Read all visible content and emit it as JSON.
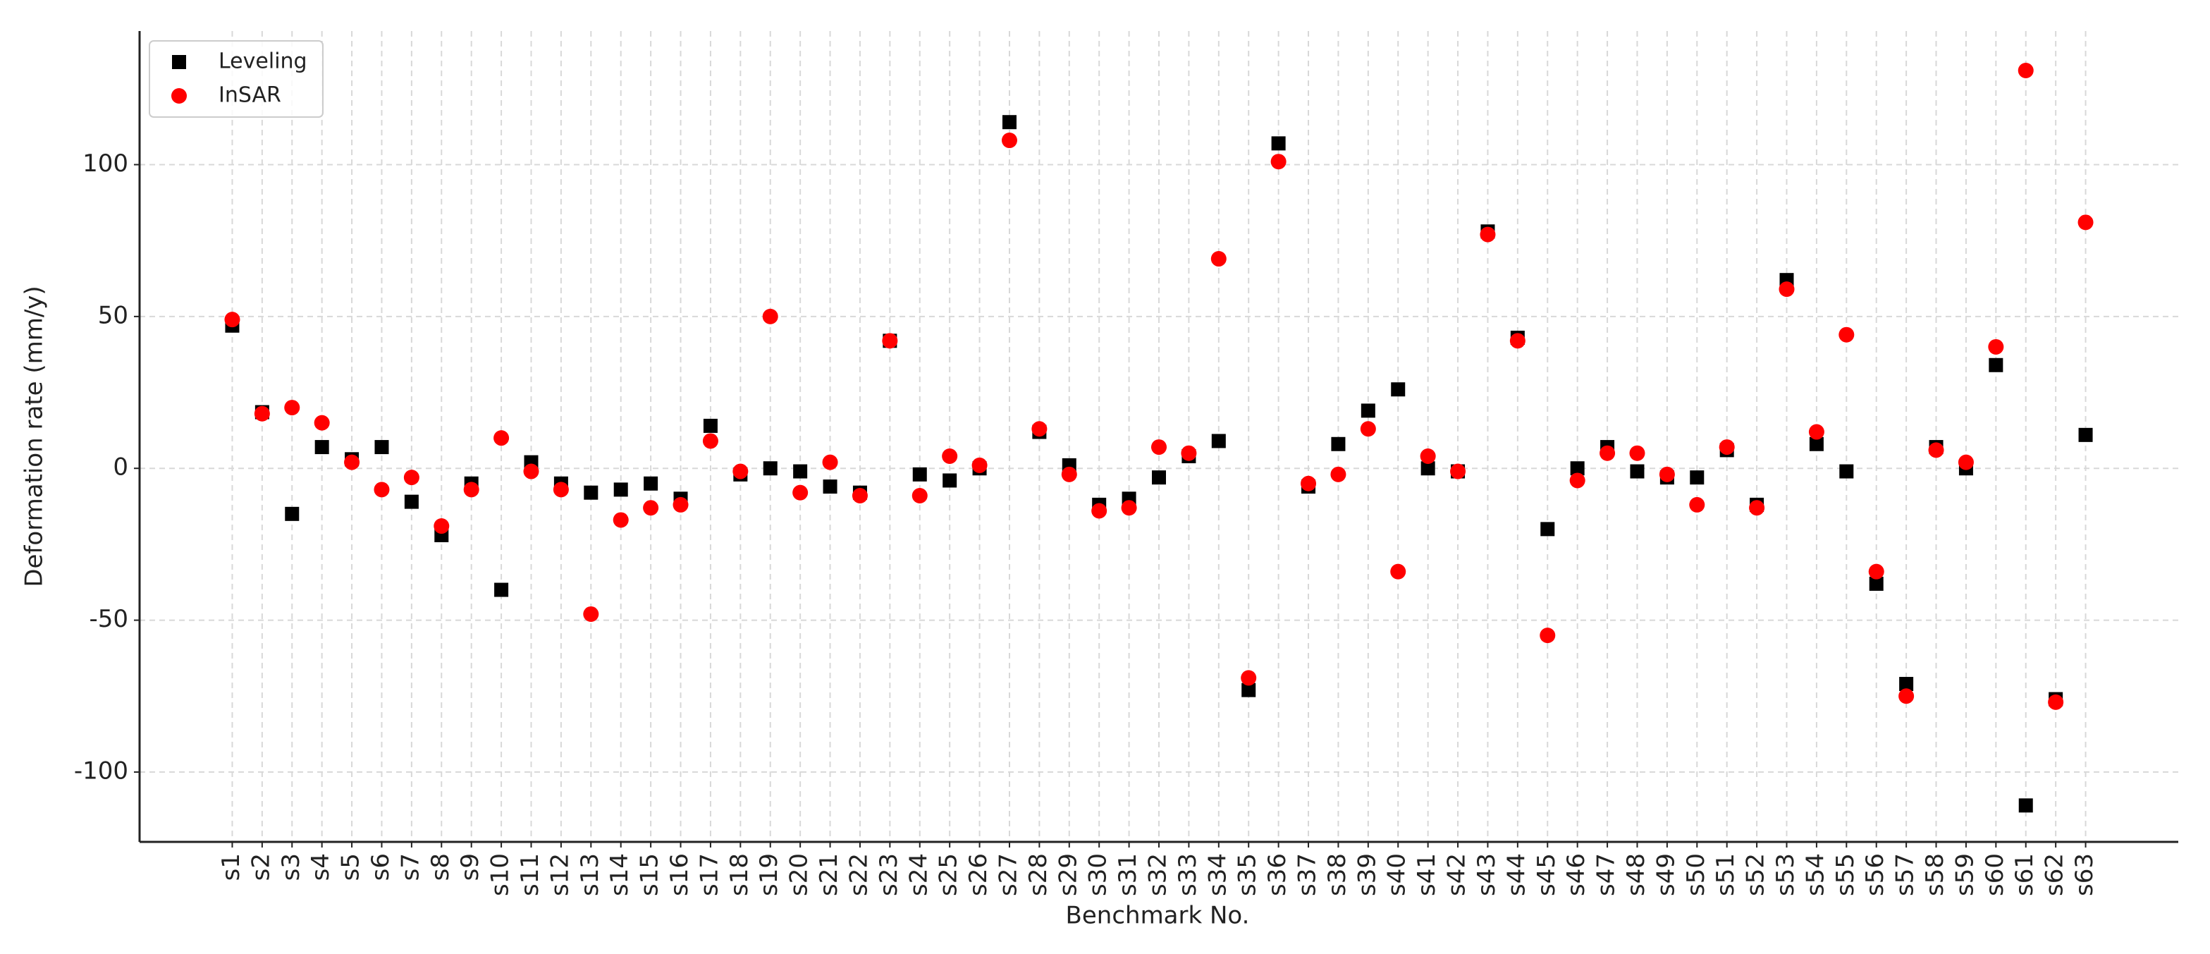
{
  "chart_data": {
    "type": "scatter",
    "x_label": "Benchmark No.",
    "y_label": "Deformation rate (mm/y)",
    "categories": [
      "s1",
      "s2",
      "s3",
      "s4",
      "s5",
      "s6",
      "s7",
      "s8",
      "s9",
      "s10",
      "s11",
      "s12",
      "s13",
      "s14",
      "s15",
      "s16",
      "s17",
      "s18",
      "s19",
      "s20",
      "s21",
      "s22",
      "s23",
      "s24",
      "s25",
      "s26",
      "s27",
      "s28",
      "s29",
      "s30",
      "s31",
      "s32",
      "s33",
      "s34",
      "s35",
      "s36",
      "s37",
      "s38",
      "s39",
      "s40",
      "s41",
      "s42",
      "s43",
      "s44",
      "s45",
      "s46",
      "s47",
      "s48",
      "s49",
      "s50",
      "s51",
      "s52",
      "s53",
      "s54",
      "s55",
      "s56",
      "s57",
      "s58",
      "s59",
      "s60",
      "s61",
      "s62",
      "s63"
    ],
    "series": [
      {
        "name": "Leveling",
        "color": "#000000",
        "marker": "square",
        "values": [
          47,
          18.5,
          -15,
          7,
          3,
          7,
          -11,
          -22,
          -5,
          -40,
          2,
          -5,
          -8,
          -7,
          -5,
          -10,
          14,
          -2,
          0,
          -1,
          -6,
          -8,
          42,
          -2,
          -4,
          0,
          114,
          12,
          1,
          -12,
          -10,
          -3,
          4,
          9,
          -73,
          107,
          -6,
          8,
          19,
          26,
          0,
          -1,
          78,
          43,
          -20,
          0,
          7,
          -1,
          -3,
          -3,
          6,
          -12,
          62,
          8,
          -1,
          -38,
          -71,
          7,
          0,
          34,
          -111,
          -76,
          11
        ]
      },
      {
        "name": "InSAR",
        "color": "#ff0000",
        "marker": "circle",
        "values": [
          49,
          18,
          20,
          15,
          2,
          -7,
          -3,
          -19,
          -7,
          10,
          -1,
          -7,
          -48,
          -17,
          -13,
          -12,
          9,
          -1,
          50,
          -8,
          2,
          -9,
          42,
          -9,
          4,
          1,
          108,
          13,
          -2,
          -14,
          -13,
          7,
          5,
          69,
          -69,
          101,
          -5,
          -2,
          13,
          -34,
          4,
          -1,
          77,
          42,
          -55,
          -4,
          5,
          5,
          -2,
          -12,
          7,
          -13,
          59,
          12,
          44,
          -34,
          -75,
          6,
          2,
          40,
          131,
          -77,
          81
        ]
      }
    ],
    "ylim": [
      -123,
      144
    ],
    "yticks": [
      -100,
      -50,
      0,
      50,
      100
    ],
    "grid": true,
    "legend": "upper left"
  }
}
